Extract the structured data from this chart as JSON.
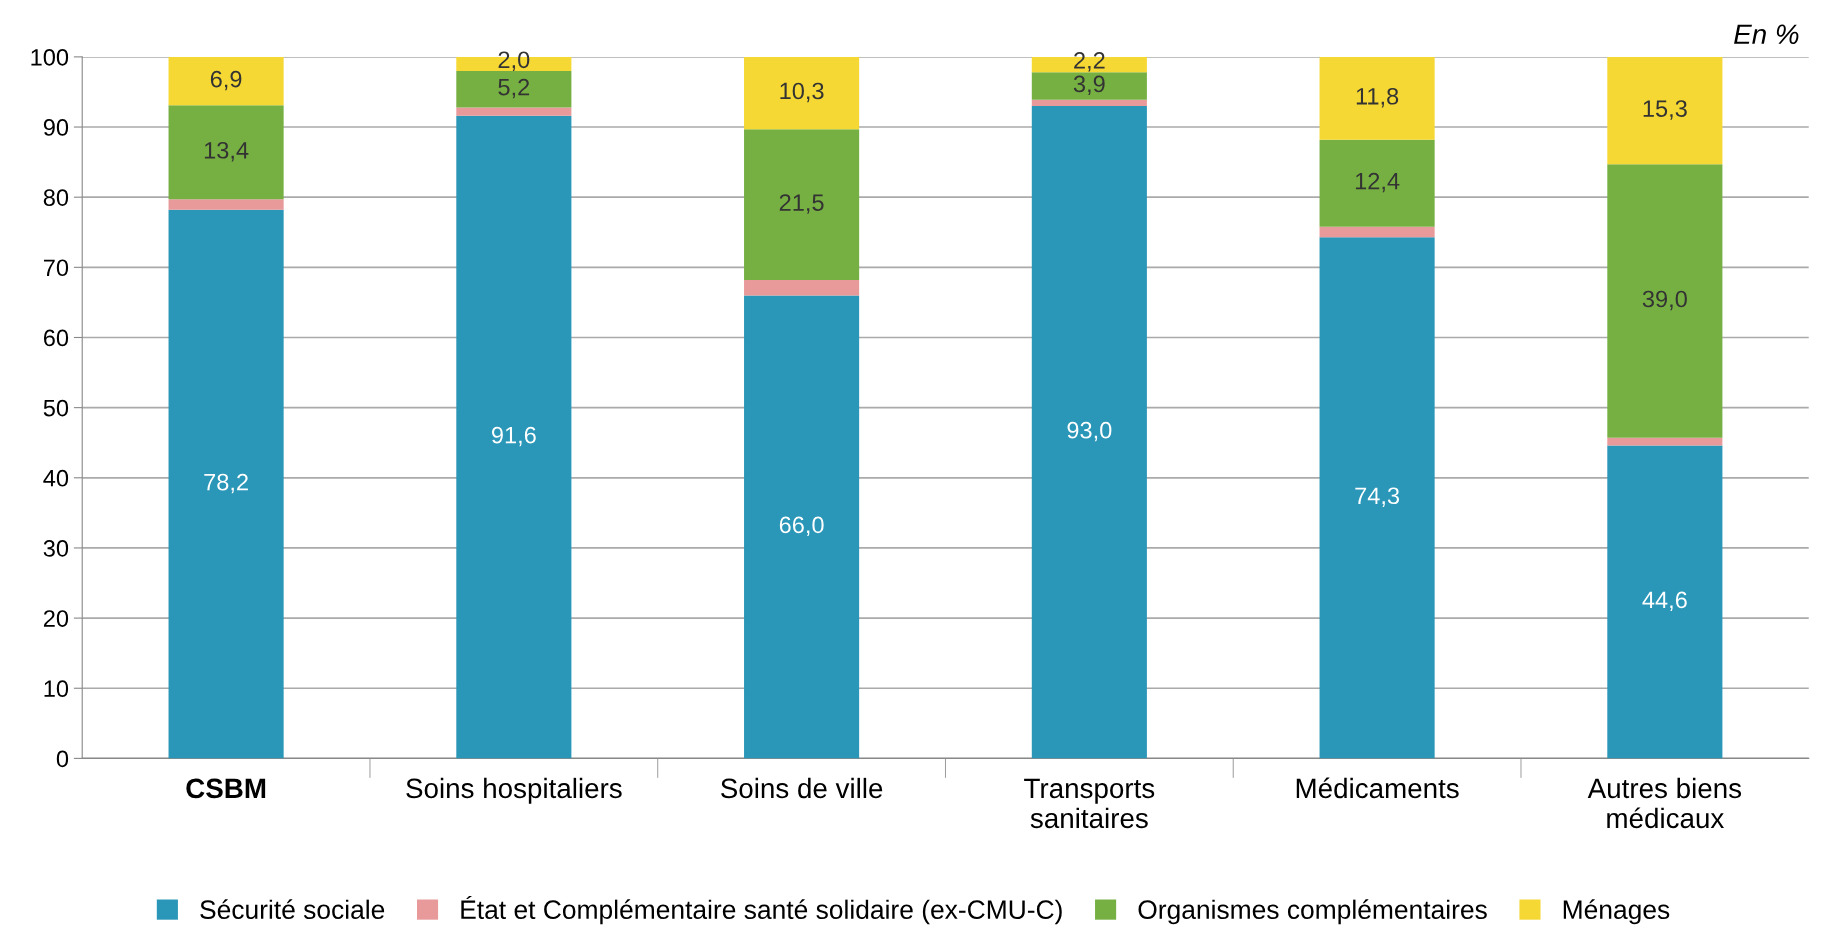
{
  "chart_data": {
    "type": "bar",
    "stacked": true,
    "categories": [
      "CSBM",
      "Soins hospitaliers",
      "Soins de ville",
      "Transports\nsanitaires",
      "Médicaments",
      "Autres biens\nmédicaux"
    ],
    "series": [
      {
        "name": "Sécurité sociale",
        "color": "#2a96b8",
        "values": [
          78.2,
          91.6,
          66.0,
          93.0,
          74.3,
          44.6
        ],
        "value_labels": [
          "78,2",
          "91,6",
          "66,0",
          "93,0",
          "74,3",
          "44,6"
        ]
      },
      {
        "name": "État et Complémentaire santé solidaire (ex-CMU-C)",
        "color": "#e8999a",
        "values": [
          1.5,
          1.2,
          2.2,
          0.9,
          1.5,
          1.1
        ]
      },
      {
        "name": "Organismes complémentaires",
        "color": "#76b043",
        "values": [
          13.4,
          5.2,
          21.5,
          3.9,
          12.4,
          39.0
        ],
        "value_labels": [
          "13,4",
          "5,2",
          "21,5",
          "3,9",
          "12,4",
          "39,0"
        ]
      },
      {
        "name": "Ménages",
        "color": "#f5d833",
        "values": [
          6.9,
          2.0,
          10.3,
          2.2,
          11.8,
          15.3
        ],
        "value_labels": [
          "6,9",
          "2,0",
          "10,3",
          "2,2",
          "11,8",
          "15,3"
        ]
      }
    ],
    "ylim": [
      0,
      100
    ],
    "yticks": [
      0,
      10,
      20,
      30,
      40,
      50,
      60,
      70,
      80,
      90,
      100
    ],
    "grid": "y",
    "legend": "bottom",
    "annotations": [
      "En %"
    ]
  }
}
